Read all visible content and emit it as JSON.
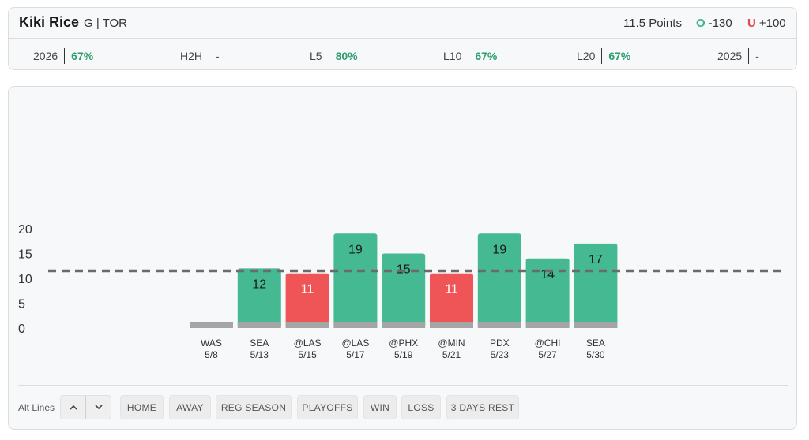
{
  "header": {
    "player_name": "Kiki Rice",
    "player_meta": "G | TOR",
    "prop_line": "11.5 Points",
    "over": {
      "mark": "O",
      "odds": "-130"
    },
    "under": {
      "mark": "U",
      "odds": "+100"
    }
  },
  "stats": [
    {
      "label": "2026",
      "value": "67%"
    },
    {
      "label": "H2H",
      "value": "-"
    },
    {
      "label": "L5",
      "value": "80%"
    },
    {
      "label": "L10",
      "value": "67%"
    },
    {
      "label": "L20",
      "value": "67%"
    },
    {
      "label": "2025",
      "value": "-"
    }
  ],
  "colors": {
    "over": "#45b991",
    "under": "#ef5457",
    "base": "#a5a5a5",
    "line": "#6b6b6b"
  },
  "chart_data": {
    "type": "bar",
    "categories": [
      "WAS",
      "SEA",
      "@LAS",
      "@LAS",
      "@PHX",
      "@MIN",
      "PDX",
      "@CHI",
      "SEA"
    ],
    "dates": [
      "5/8",
      "5/13",
      "5/15",
      "5/17",
      "5/19",
      "5/21",
      "5/23",
      "5/27",
      "5/30"
    ],
    "values": [
      0,
      12,
      11,
      19,
      15,
      11,
      19,
      14,
      17
    ],
    "threshold": 11.5,
    "yticks": [
      0,
      5,
      10,
      15,
      20
    ],
    "ylim": [
      0,
      20
    ],
    "title": "",
    "xlabel": "",
    "ylabel": ""
  },
  "controls": {
    "alt_lines_label": "Alt Lines",
    "up_icon": "chevron-up-icon",
    "down_icon": "chevron-down-icon",
    "filters": [
      "HOME",
      "AWAY",
      "REG SEASON",
      "PLAYOFFS",
      "WIN",
      "LOSS",
      "3 DAYS REST"
    ]
  }
}
